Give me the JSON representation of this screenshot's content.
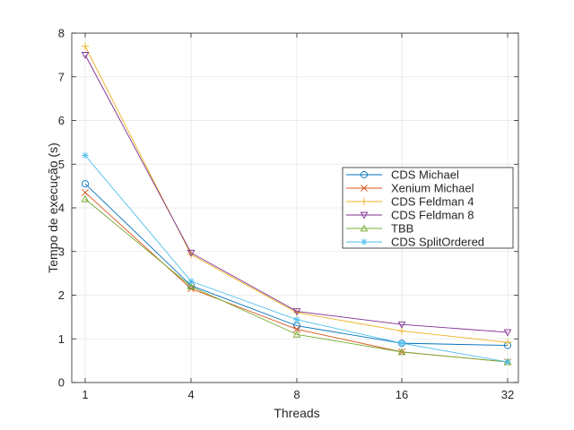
{
  "chart_data": {
    "type": "line",
    "xlabel": "Threads",
    "ylabel": "Tempo de execução (s)",
    "x": [
      "1",
      "4",
      "8",
      "16",
      "32"
    ],
    "ylim": [
      0,
      8
    ],
    "yticks": [
      "0",
      "1",
      "2",
      "3",
      "4",
      "5",
      "6",
      "7",
      "8"
    ],
    "grid": true,
    "legend_position": "center-right",
    "series": [
      {
        "name": "CDS Michael",
        "marker": "circle",
        "color": "#0072bd",
        "values": [
          4.55,
          2.22,
          1.3,
          0.9,
          0.85
        ]
      },
      {
        "name": "Xenium Michael",
        "marker": "x",
        "color": "#d95319",
        "values": [
          4.35,
          2.15,
          1.22,
          0.7,
          0.47
        ]
      },
      {
        "name": "CDS Feldman 4",
        "marker": "plus",
        "color": "#edb120",
        "values": [
          7.7,
          2.93,
          1.6,
          1.18,
          0.92
        ]
      },
      {
        "name": "CDS Feldman 8",
        "marker": "triangle-down",
        "color": "#7e2f8e",
        "values": [
          7.5,
          2.97,
          1.63,
          1.33,
          1.15
        ]
      },
      {
        "name": "TBB",
        "marker": "triangle-up",
        "color": "#77ac30",
        "values": [
          4.2,
          2.2,
          1.1,
          0.7,
          0.47
        ]
      },
      {
        "name": "CDS SplitOrdered",
        "marker": "asterisk",
        "color": "#4dbeee",
        "values": [
          5.2,
          2.32,
          1.44,
          0.9,
          0.47
        ]
      }
    ]
  }
}
